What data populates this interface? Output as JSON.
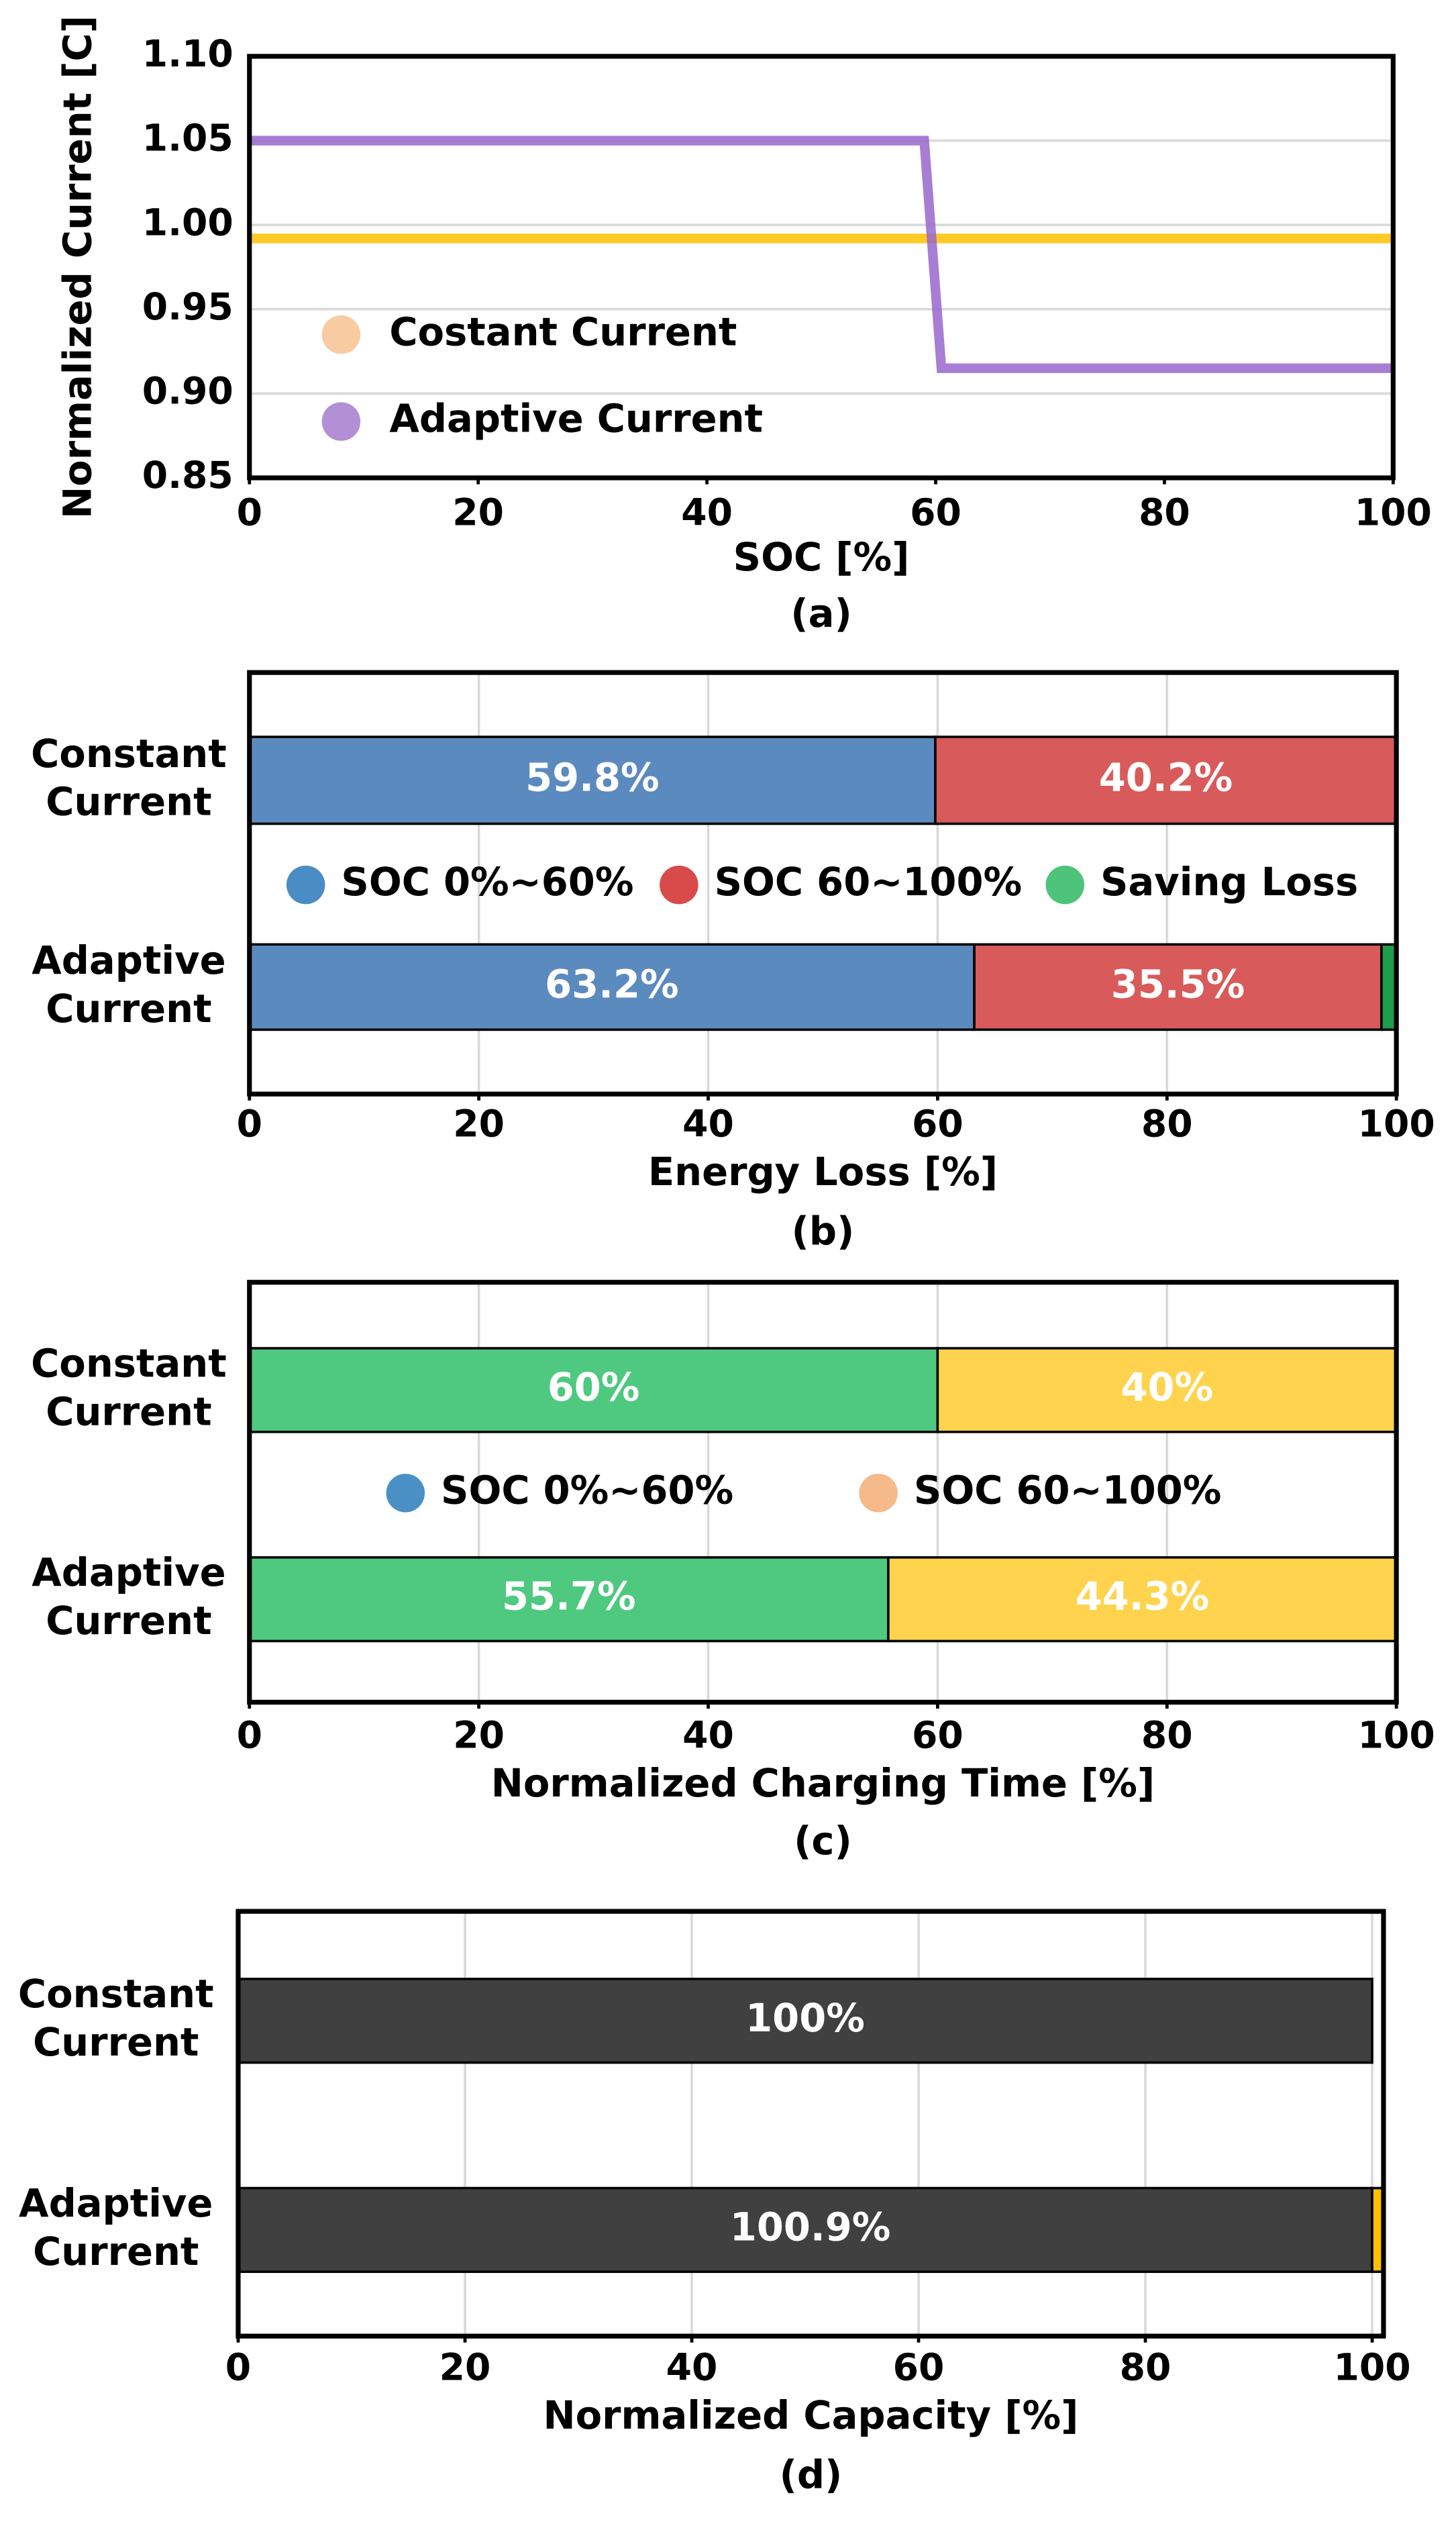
{
  "chart_data": [
    {
      "type": "line",
      "caption": "(a)",
      "x_label": "SOC [%]",
      "y_label": "Normalized Current [C]",
      "xlim": [
        0,
        100
      ],
      "xticks": [
        0,
        20,
        40,
        60,
        80,
        100
      ],
      "ylim": [
        0.85,
        1.1
      ],
      "yticks": [
        0.85,
        {
          "value": 0.9,
          "label": "0.90"
        },
        0.95,
        {
          "value": 1,
          "label": "1.00"
        },
        1.05,
        {
          "value": 1.1,
          "label": "1.10"
        }
      ],
      "grid": true,
      "series": [
        {
          "name": "Costant Current",
          "color": "#ffc000",
          "legend_color": "#f8cba0",
          "x": [
            0,
            100
          ],
          "values": [
            0.992,
            0.992
          ]
        },
        {
          "name": "Adaptive Current",
          "color": "#9966cc",
          "legend_color": "#b38fd6",
          "x": [
            0,
            59,
            60.5,
            100
          ],
          "values": [
            1.05,
            1.05,
            0.915,
            0.915
          ]
        }
      ]
    },
    {
      "type": "bar",
      "orientation": "horizontal",
      "stacked": true,
      "caption": "(b)",
      "x_label": "Energy Loss [%]",
      "categories": [
        "Constant Current",
        "Adaptive Current"
      ],
      "xlim": [
        0,
        100
      ],
      "xticks": [
        0,
        20,
        40,
        60,
        80,
        100
      ],
      "grid": true,
      "series": [
        {
          "name": "SOC 0%~60%",
          "color": "#5b8abf",
          "legend_color": "#4a8cc4",
          "values": [
            59.8,
            63.2
          ],
          "value_labels": [
            "59.8%",
            "63.2%"
          ]
        },
        {
          "name": "SOC 60~100%",
          "color": "#d95a5a",
          "legend_color": "#d94a4a",
          "values": [
            40.2,
            35.5
          ],
          "value_labels": [
            "40.2%",
            "35.5%"
          ]
        },
        {
          "name": "Saving Loss",
          "color": "#1e9e4a",
          "legend_color": "#4dc47a",
          "values": [
            null,
            1.3
          ]
        }
      ]
    },
    {
      "type": "bar",
      "orientation": "horizontal",
      "stacked": true,
      "caption": "(c)",
      "x_label": "Normalized Charging Time [%]",
      "categories": [
        "Constant Current",
        "Adaptive Current"
      ],
      "xlim": [
        0,
        100
      ],
      "xticks": [
        0,
        20,
        40,
        60,
        80,
        100
      ],
      "grid": true,
      "series": [
        {
          "name": "SOC 0%~60%",
          "color": "#4ec97f",
          "legend_color": "#4a90c4",
          "values": [
            60,
            55.7
          ],
          "value_labels": [
            "60%",
            "55.7%"
          ]
        },
        {
          "name": "SOC 60~100%",
          "color": "#ffd34d",
          "legend_color": "#f5b98a",
          "values": [
            40,
            44.3
          ],
          "value_labels": [
            "40%",
            "44.3%"
          ]
        }
      ]
    },
    {
      "type": "bar",
      "orientation": "horizontal",
      "stacked": true,
      "caption": "(d)",
      "x_label": "Normalized Capacity [%]",
      "categories": [
        "Constant Current",
        "Adaptive Current"
      ],
      "xlim": [
        0,
        101
      ],
      "xticks": [
        0,
        20,
        40,
        60,
        80,
        100
      ],
      "grid": true,
      "totals": [
        100,
        100.9
      ],
      "total_labels": [
        "100%",
        "100.9%"
      ],
      "series": [
        {
          "color": "#404040",
          "values": [
            100,
            100
          ]
        },
        {
          "color": "#ffc000",
          "values": [
            null,
            0.9
          ]
        }
      ]
    }
  ]
}
